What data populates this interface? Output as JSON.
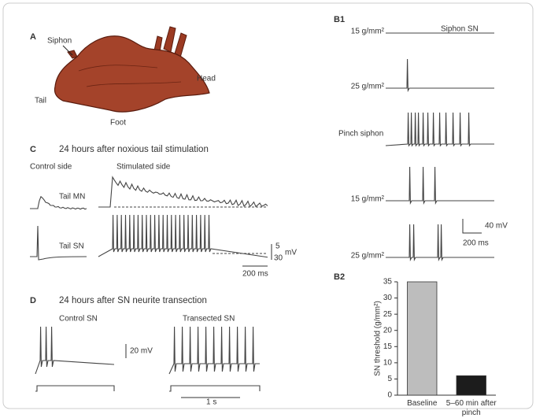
{
  "panel_a": {
    "label": "A",
    "annotations": [
      "Siphon",
      "Head",
      "Tail",
      "Foot"
    ]
  },
  "panel_b1": {
    "label": "B1",
    "trace_title": "Siphon SN",
    "rows": [
      "15 g/mm²",
      "25 g/mm²",
      "Pinch siphon",
      "15 g/mm²",
      "25 g/mm²"
    ],
    "scale": [
      "40 mV",
      "200 ms"
    ]
  },
  "panel_c": {
    "label": "C",
    "title": "24 hours after noxious tail stimulation",
    "columns": [
      "Control side",
      "Stimulated side"
    ],
    "rows": [
      "Tail MN",
      "Tail SN"
    ],
    "scale": [
      "5",
      "30",
      "mV",
      "200 ms"
    ]
  },
  "panel_d": {
    "label": "D",
    "title": "24 hours after SN neurite transection",
    "columns": [
      "Control SN",
      "Transected SN"
    ],
    "scale": [
      "20 mV",
      "1 s"
    ]
  },
  "chart_data": {
    "type": "bar",
    "title": "B2",
    "ylabel": "SN threshold (g/mm²)",
    "categories": [
      "Baseline",
      "5–60 min after pinch"
    ],
    "values": [
      35,
      6
    ],
    "colors": [
      "#bdbdbd",
      "#1c1c1c"
    ],
    "ylim": [
      0,
      35
    ],
    "yticks": [
      0,
      5,
      10,
      15,
      20,
      25,
      30,
      35
    ]
  }
}
